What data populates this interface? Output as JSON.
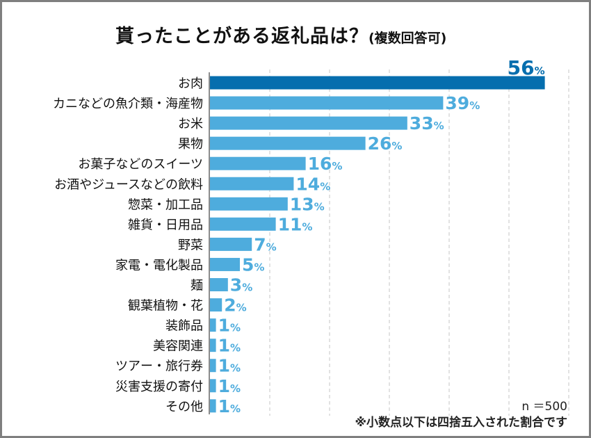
{
  "chart_data": {
    "type": "bar",
    "orientation": "horizontal",
    "title": "貰ったことがある返礼品は？",
    "subtitle": "(複数回答可)",
    "categories": [
      "お肉",
      "カニなどの魚介類・海産物",
      "お米",
      "果物",
      "お菓子などのスイーツ",
      "お酒やジュースなどの飲料",
      "惣菜・加工品",
      "雑貨・日用品",
      "野菜",
      "家電・電化製品",
      "麺",
      "観葉植物・花",
      "装飾品",
      "美容関連",
      "ツアー・旅行券",
      "災害支援の寄付",
      "その他"
    ],
    "values": [
      56,
      39,
      33,
      26,
      16,
      14,
      13,
      11,
      7,
      5,
      3,
      2,
      1,
      1,
      1,
      1,
      1
    ],
    "unit": "%",
    "xlim": [
      0,
      60
    ],
    "grid": true,
    "highlight_color": "#066eae",
    "bar_color": "#4eacdd",
    "sample_size": "n ＝500",
    "footnote": "※小数点以下は四捨五入された割合です"
  }
}
